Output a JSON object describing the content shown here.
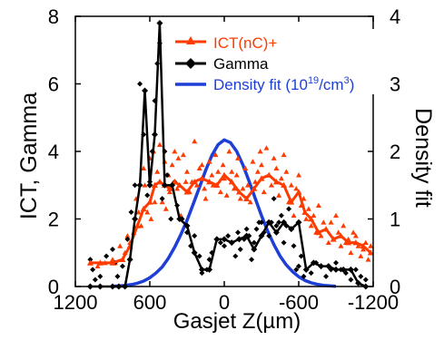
{
  "chart_data": {
    "type": "line",
    "xlabel": "Gasjet Z(µm)",
    "ylabel_left": "ICT, Gamma",
    "ylabel_right": "Density fit",
    "x_ticks": [
      "1200",
      "600",
      "0",
      "-600",
      "-1200"
    ],
    "x_tick_values": [
      1200,
      600,
      0,
      -600,
      -1200
    ],
    "xlim": [
      1200,
      -1200
    ],
    "y_left_ticks": [
      "0",
      "2",
      "4",
      "6",
      "8"
    ],
    "y_left_tick_values": [
      0,
      2,
      4,
      6,
      8
    ],
    "ylim_left": [
      0,
      8
    ],
    "y_right_ticks": [
      "0",
      "1",
      "2",
      "3",
      "4"
    ],
    "y_right_tick_values": [
      0,
      1,
      2,
      3,
      4
    ],
    "ylim_right": [
      0,
      4
    ],
    "grid": false,
    "legend_position": "top-right",
    "legend": [
      {
        "label": "ICT(nC)+",
        "series": "ict"
      },
      {
        "label": "Gamma",
        "series": "gamma"
      },
      {
        "label_main": "Density fit (10",
        "label_sup": "19",
        "label_end": "/cm",
        "label_sup2": "3",
        "label_close": ")",
        "series": "density"
      }
    ],
    "series": [
      {
        "id": "ict",
        "name": "ICT(nC)+",
        "color": "#ff3b00",
        "marker": "triangle",
        "axis": "left",
        "x": [
          1080,
          1000,
          900,
          820,
          760,
          700,
          650,
          600,
          560,
          520,
          480,
          440,
          400,
          360,
          300,
          240,
          180,
          120,
          60,
          0,
          -60,
          -120,
          -180,
          -240,
          -300,
          -360,
          -420,
          -480,
          -540,
          -600,
          -650,
          -700,
          -760,
          -820,
          -880,
          -940,
          -1000,
          -1060,
          -1120,
          -1180
        ],
        "y": [
          0.7,
          0.7,
          0.7,
          0.8,
          1.2,
          1.8,
          2.3,
          2.5,
          3.0,
          3.1,
          3.0,
          2.9,
          3.1,
          3.0,
          2.8,
          3.1,
          3.2,
          3.1,
          3.0,
          3.3,
          3.1,
          2.8,
          2.6,
          2.9,
          3.2,
          3.3,
          3.1,
          3.0,
          2.5,
          2.8,
          2.2,
          2.0,
          1.6,
          1.7,
          1.4,
          1.5,
          1.3,
          1.3,
          1.2,
          1.0
        ]
      },
      {
        "id": "gamma",
        "name": "Gamma",
        "color": "#000000",
        "marker": "diamond",
        "axis": "left",
        "x": [
          1080,
          1000,
          900,
          850,
          800,
          760,
          720,
          680,
          640,
          600,
          560,
          520,
          480,
          420,
          360,
          300,
          240,
          180,
          120,
          60,
          0,
          -60,
          -120,
          -180,
          -240,
          -300,
          -360,
          -420,
          -480,
          -540,
          -600,
          -660,
          -720,
          -780,
          -840,
          -900,
          -960,
          -1020,
          -1080,
          -1140
        ],
        "y": [
          0.0,
          0.0,
          0.0,
          0.0,
          0.0,
          0.8,
          2.0,
          3.0,
          5.8,
          3.0,
          4.5,
          7.8,
          3.0,
          3.0,
          2.0,
          1.8,
          1.0,
          0.5,
          0.5,
          1.4,
          1.4,
          1.3,
          1.4,
          1.5,
          1.1,
          1.5,
          1.9,
          1.6,
          1.9,
          1.7,
          1.9,
          0.5,
          0.7,
          0.6,
          0.6,
          0.5,
          0.5,
          0.5,
          0.1,
          0.0
        ]
      },
      {
        "id": "density",
        "name": "Density fit (10^19/cm^3)",
        "color": "#1d3fd6",
        "marker": "none",
        "axis": "right",
        "x": [
          900,
          850,
          800,
          750,
          700,
          650,
          600,
          550,
          500,
          450,
          400,
          350,
          300,
          250,
          200,
          150,
          100,
          50,
          0,
          -50,
          -100,
          -150,
          -200,
          -250,
          -300,
          -350,
          -400,
          -450,
          -500,
          -550,
          -600,
          -650,
          -700,
          -750,
          -800,
          -850,
          -900
        ],
        "y": [
          0.004,
          0.008,
          0.015,
          0.028,
          0.048,
          0.08,
          0.13,
          0.2,
          0.29,
          0.42,
          0.58,
          0.77,
          0.98,
          1.22,
          1.47,
          1.72,
          1.94,
          2.1,
          2.17,
          2.13,
          2.0,
          1.8,
          1.56,
          1.3,
          1.05,
          0.82,
          0.62,
          0.45,
          0.32,
          0.22,
          0.145,
          0.09,
          0.055,
          0.032,
          0.018,
          0.009,
          0.004
        ]
      }
    ],
    "scatter": {
      "ict_points": {
        "color": "#ff3b00",
        "marker": "triangle",
        "x": [
          1080,
          1020,
          960,
          900,
          880,
          840,
          800,
          780,
          760,
          730,
          710,
          690,
          670,
          650,
          640,
          620,
          600,
          590,
          570,
          560,
          540,
          520,
          500,
          480,
          470,
          450,
          440,
          420,
          400,
          380,
          370,
          350,
          330,
          310,
          300,
          280,
          260,
          240,
          220,
          200,
          180,
          160,
          150,
          120,
          100,
          90,
          70,
          50,
          30,
          10,
          0,
          -20,
          -40,
          -60,
          -80,
          -100,
          -110,
          -130,
          -150,
          -170,
          -190,
          -210,
          -230,
          -250,
          -270,
          -290,
          -300,
          -320,
          -340,
          -360,
          -380,
          -400,
          -420,
          -440,
          -460,
          -480,
          -500,
          -520,
          -540,
          -560,
          -580,
          -600,
          -620,
          -640,
          -660,
          -680,
          -700,
          -720,
          -740,
          -760,
          -780,
          -800,
          -820,
          -840,
          -860,
          -880,
          -900,
          -920,
          -940,
          -960,
          -980,
          -1000,
          -1020,
          -1040,
          -1060,
          -1080,
          -1100,
          -1120,
          -1140,
          -1160,
          -1180
        ],
        "y": [
          0.7,
          0.6,
          0.7,
          0.8,
          0.7,
          1.2,
          1.0,
          1.5,
          1.3,
          1.6,
          2.6,
          2.2,
          1.8,
          3.5,
          3.0,
          2.2,
          3.8,
          2.0,
          4.0,
          2.5,
          3.4,
          4.2,
          2.5,
          3.7,
          2.3,
          3.3,
          2.8,
          3.6,
          4.0,
          2.9,
          3.8,
          2.1,
          3.9,
          3.1,
          3.4,
          2.8,
          3.1,
          4.3,
          3.0,
          3.5,
          3.6,
          2.9,
          2.6,
          3.7,
          3.3,
          3.0,
          3.9,
          3.4,
          2.8,
          3.6,
          3.2,
          2.7,
          4.0,
          3.4,
          2.9,
          3.3,
          3.8,
          2.6,
          2.9,
          3.5,
          3.0,
          2.5,
          3.7,
          3.1,
          3.4,
          4.0,
          3.6,
          2.8,
          4.1,
          3.3,
          3.0,
          3.8,
          3.5,
          2.7,
          3.2,
          3.9,
          3.4,
          2.5,
          3.0,
          2.1,
          2.9,
          3.3,
          2.4,
          2.6,
          2.0,
          2.3,
          1.8,
          2.1,
          1.6,
          2.4,
          1.5,
          1.9,
          1.7,
          1.3,
          1.9,
          1.4,
          2.1,
          1.6,
          1.2,
          1.8,
          1.3,
          1.4,
          1.0,
          1.6,
          1.5,
          1.2,
          0.9,
          1.1,
          1.3,
          0.8,
          1.2
        ]
      },
      "gamma_points": {
        "color": "#000000",
        "marker": "diamond",
        "x": [
          1080,
          1060,
          1040,
          1000,
          950,
          900,
          880,
          860,
          820,
          780,
          750,
          720,
          680,
          650,
          620,
          600,
          580,
          560,
          540,
          520,
          500,
          480,
          460,
          430,
          400,
          380,
          340,
          300,
          270,
          240,
          200,
          180,
          140,
          120,
          100,
          60,
          30,
          0,
          -30,
          -60,
          -90,
          -110,
          -130,
          -160,
          -180,
          -200,
          -220,
          -240,
          -260,
          -280,
          -300,
          -320,
          -360,
          -380,
          -400,
          -420,
          -440,
          -460,
          -480,
          -500,
          -520,
          -540,
          -560,
          -580,
          -600,
          -620,
          -640,
          -660,
          -700,
          -740,
          -780,
          -820,
          -860,
          -900,
          -940,
          -980,
          -1020,
          -1060,
          -1100,
          -1140
        ],
        "y": [
          0.8,
          0.5,
          0.2,
          0.3,
          0.9,
          1.1,
          0.7,
          0.3,
          0.6,
          1.4,
          2.2,
          3.0,
          6.0,
          4.5,
          2.7,
          3.1,
          4.0,
          5.5,
          6.6,
          7.2,
          2.6,
          4.0,
          3.3,
          2.0,
          3.1,
          2.4,
          2.0,
          1.6,
          1.2,
          1.5,
          0.9,
          0.4,
          0.5,
          0.8,
          1.0,
          1.4,
          1.3,
          1.2,
          1.5,
          1.3,
          0.9,
          1.6,
          1.1,
          1.4,
          1.7,
          1.5,
          0.8,
          1.3,
          1.7,
          1.9,
          1.9,
          1.6,
          1.5,
          1.9,
          2.6,
          1.8,
          1.9,
          2.1,
          1.3,
          1.8,
          2.3,
          1.7,
          1.2,
          0.5,
          0.6,
          0.9,
          0.3,
          0.5,
          0.4,
          0.7,
          0.6,
          0.3,
          0.5,
          0.7,
          0.5,
          0.4,
          0.2,
          0.5,
          0.3,
          0.2
        ]
      }
    }
  }
}
